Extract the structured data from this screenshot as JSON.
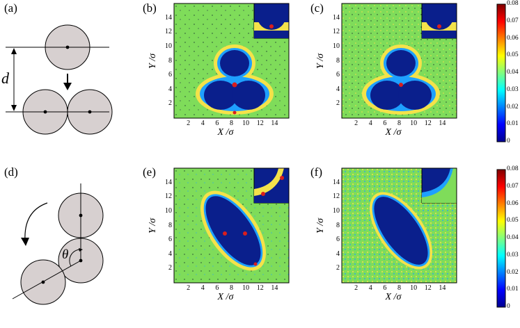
{
  "panels": {
    "a": "(a)",
    "b": "(b)",
    "c": "(c)",
    "d": "(d)",
    "e": "(e)",
    "f": "(f)"
  },
  "schematic_a": {
    "distance_label": "d"
  },
  "schematic_d": {
    "angle_label": "θ"
  },
  "axes": {
    "xlabel": "X /σ",
    "ylabel": "Y /σ",
    "x_ticks": [
      "2",
      "4",
      "6",
      "8",
      "10",
      "12",
      "14"
    ],
    "y_ticks": [
      "2",
      "4",
      "6",
      "8",
      "10",
      "12",
      "14"
    ]
  },
  "colorbar": {
    "ticks": [
      "0",
      "0.01",
      "0.02",
      "0.03",
      "0.04",
      "0.05",
      "0.06",
      "0.07",
      "0.08"
    ],
    "range": [
      0,
      0.08
    ],
    "colormap": "jet"
  },
  "colors": {
    "background_field": "#7fdc5a",
    "excluded_core": "#0a1f8c",
    "ring_yellow": "#f4e24a",
    "ring_red": "#d81e1e",
    "disk_fill": "#d7d0d0"
  }
}
